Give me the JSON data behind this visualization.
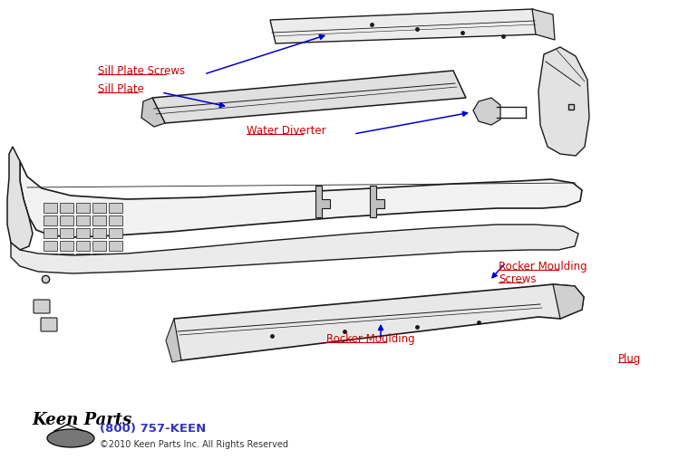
{
  "background_color": "#ffffff",
  "label_color": "#cc0000",
  "arrow_color": "#0000cc",
  "line_color": "#1a1a1a",
  "labels": {
    "sill_plate_screws": "Sill Plate Screws",
    "sill_plate": "Sill Plate",
    "water_diverter": "Water Diverter",
    "rocker_moulding_screws_1": "Rocker Moulding",
    "rocker_moulding_screws_2": "Screws",
    "rocker_moulding": "Rocker Moulding",
    "plug": "Plug"
  },
  "footer_phone": "(800) 757-KEEN",
  "footer_phone_color": "#3333bb",
  "footer_copy": "©2010 Keen Parts Inc. All Rights Reserved",
  "footer_copy_color": "#333333",
  "keen_parts_logo": "Keen Parts"
}
